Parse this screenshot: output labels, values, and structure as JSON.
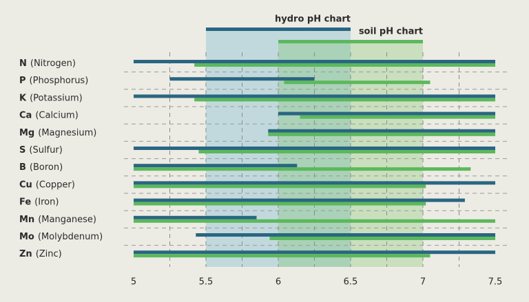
{
  "chart_data": {
    "type": "range-bar",
    "categories": [
      {
        "symbol": "N",
        "name": "(Nitrogen)"
      },
      {
        "symbol": "P",
        "name": "(Phosphorus)"
      },
      {
        "symbol": "K",
        "name": "(Potassium)"
      },
      {
        "symbol": "Ca",
        "name": "(Calcium)"
      },
      {
        "symbol": "Mg",
        "name": "(Magnesium)"
      },
      {
        "symbol": "S",
        "name": "(Sulfur)"
      },
      {
        "symbol": "B",
        "name": "(Boron)"
      },
      {
        "symbol": "Cu",
        "name": "(Copper)"
      },
      {
        "symbol": "Fe",
        "name": "(Iron)"
      },
      {
        "symbol": "Mn",
        "name": "(Manganese)"
      },
      {
        "symbol": "Mo",
        "name": "(Molybdenum)"
      },
      {
        "symbol": "Zn",
        "name": "(Zinc)"
      }
    ],
    "series": [
      {
        "name": "hydro pH chart",
        "color": "#2a6682",
        "shade": "rgba(150,200,214,0.5)",
        "range": [
          5.5,
          6.5
        ],
        "values": [
          [
            5,
            7.5
          ],
          [
            5.25,
            6.25
          ],
          [
            5,
            7.5
          ],
          [
            6,
            7.5
          ],
          [
            5.93,
            7.5
          ],
          [
            5,
            7.5
          ],
          [
            5,
            6.13
          ],
          [
            5,
            7.5
          ],
          [
            5,
            7.29
          ],
          [
            5,
            5.85
          ],
          [
            5.43,
            7.5
          ],
          [
            5,
            7.5
          ]
        ]
      },
      {
        "name": "soil pH chart",
        "color": "#5cb85c",
        "shade": "rgba(120,195,100,0.3)",
        "range": [
          6,
          7
        ],
        "values": [
          [
            5.42,
            7.5
          ],
          [
            6.04,
            7.05
          ],
          [
            5.42,
            7.5
          ],
          [
            6.15,
            7.5
          ],
          [
            5.93,
            7.5
          ],
          [
            5.45,
            7.5
          ],
          [
            5,
            7.33
          ],
          [
            5,
            7.02
          ],
          [
            5,
            7.02
          ],
          [
            5,
            7.5
          ],
          [
            5.94,
            7.5
          ],
          [
            5,
            7.05
          ]
        ]
      }
    ],
    "xlim": [
      5,
      7.5
    ],
    "xticks": [
      5,
      5.5,
      6,
      6.5,
      7,
      7.5
    ],
    "xgrid": [
      5.25,
      5.5,
      5.75,
      6,
      6.25,
      6.5,
      6.75,
      7,
      7.25
    ]
  }
}
